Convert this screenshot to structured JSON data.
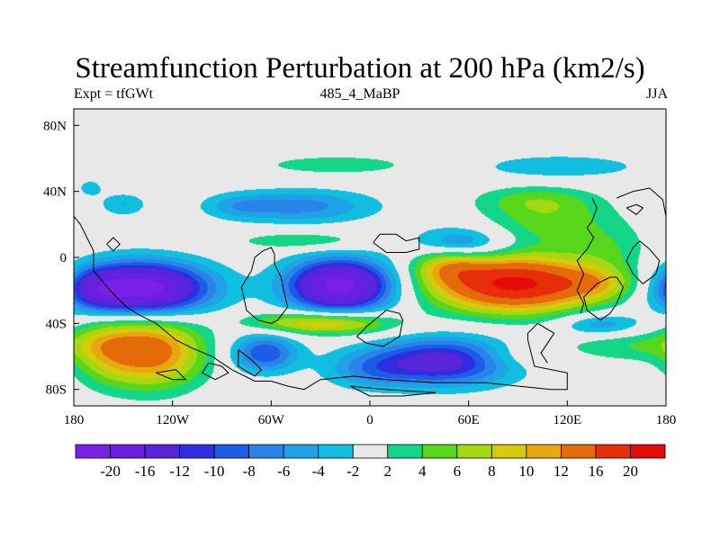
{
  "title": "Streamfunction Perturbation at 200 hPa (km2/s)",
  "left_subtitle": "Expt = tfGWt",
  "center_subtitle": "485_4_MaBP",
  "right_subtitle": "JJA",
  "map": {
    "projection": "cylindrical equidistant",
    "lon_range": [
      -180,
      180
    ],
    "lat_range": [
      -90,
      90
    ],
    "x_ticks": [
      {
        "value": -180,
        "label": "180"
      },
      {
        "value": -120,
        "label": "120W"
      },
      {
        "value": -60,
        "label": "60W"
      },
      {
        "value": 0,
        "label": "0"
      },
      {
        "value": 60,
        "label": "60E"
      },
      {
        "value": 120,
        "label": "120E"
      },
      {
        "value": 180,
        "label": "180"
      }
    ],
    "y_ticks": [
      {
        "value": 80,
        "label": "80N"
      },
      {
        "value": 40,
        "label": "40N"
      },
      {
        "value": 0,
        "label": "0"
      },
      {
        "value": -40,
        "label": "40S"
      },
      {
        "value": -80,
        "label": "80S"
      }
    ],
    "background_color": "#e8e8e8",
    "coastline_color": "#000000"
  },
  "colorbar": {
    "colors": [
      "#7a1fe6",
      "#6a1fe0",
      "#5a25d8",
      "#2e2ee0",
      "#1c5ce8",
      "#2a84e8",
      "#1fa3e6",
      "#10bfdf",
      "#e8e8e8",
      "#14d689",
      "#58d61a",
      "#a4d812",
      "#d4cc0a",
      "#e6a80e",
      "#e56a0a",
      "#e62e0a",
      "#e60b0b"
    ],
    "labels": [
      "-20",
      "-16",
      "-12",
      "-10",
      "-8",
      "-6",
      "-4",
      "-2",
      "2",
      "4",
      "6",
      "8",
      "10",
      "12",
      "16",
      "20"
    ]
  },
  "anomalies": [
    {
      "lon": -139,
      "lat": -19,
      "amp": -23,
      "slon": 28,
      "slat": 11
    },
    {
      "lon": -165,
      "lat": -19,
      "amp": -6,
      "slon": 12,
      "slat": 8
    },
    {
      "lon": -18,
      "lat": -17,
      "amp": -22,
      "slon": 22,
      "slat": 11
    },
    {
      "lon": 88,
      "lat": -16,
      "amp": 21,
      "slon": 35,
      "slat": 12
    },
    {
      "lon": 48,
      "lat": -4,
      "amp": 7,
      "slon": 15,
      "slat": 8
    },
    {
      "lon": 140,
      "lat": -16,
      "amp": 5,
      "slon": 18,
      "slat": 7
    },
    {
      "lon": -133,
      "lat": -57,
      "amp": 14,
      "slon": 22,
      "slat": 15
    },
    {
      "lon": -162,
      "lat": -55,
      "amp": 5,
      "slon": 14,
      "slat": 14
    },
    {
      "lon": -64,
      "lat": -58,
      "amp": -10,
      "slon": 14,
      "slat": 8
    },
    {
      "lon": 45,
      "lat": -63,
      "amp": -14,
      "slon": 30,
      "slat": 10
    },
    {
      "lon": 0,
      "lat": -68,
      "amp": -5,
      "slon": 20,
      "slat": 8
    },
    {
      "lon": -20,
      "lat": -40,
      "amp": 10,
      "slon": 25,
      "slat": 5
    },
    {
      "lon": -55,
      "lat": -39,
      "amp": 4,
      "slon": 20,
      "slat": 4
    },
    {
      "lon": 140,
      "lat": -41,
      "amp": -6,
      "slon": 18,
      "slat": 5
    },
    {
      "lon": 160,
      "lat": -53,
      "amp": 4,
      "slon": 30,
      "slat": 7
    },
    {
      "lon": 85,
      "lat": -60,
      "amp": 3,
      "slon": 20,
      "slat": 6
    },
    {
      "lon": -150,
      "lat": 32,
      "amp": -4,
      "slon": 10,
      "slat": 5
    },
    {
      "lon": -170,
      "lat": 42,
      "amp": -3,
      "slon": 6,
      "slat": 4
    },
    {
      "lon": -43,
      "lat": 31,
      "amp": -7,
      "slon": 32,
      "slat": 7
    },
    {
      "lon": -80,
      "lat": 31,
      "amp": -3,
      "slon": 14,
      "slat": 5
    },
    {
      "lon": -40,
      "lat": 10,
      "amp": 4,
      "slon": 30,
      "slat": 4
    },
    {
      "lon": -20,
      "lat": 56,
      "amp": 3,
      "slon": 40,
      "slat": 5
    },
    {
      "lon": 55,
      "lat": 8,
      "amp": -8,
      "slon": 20,
      "slat": 7
    },
    {
      "lon": 115,
      "lat": 55,
      "amp": -4,
      "slon": 35,
      "slat": 5
    },
    {
      "lon": 110,
      "lat": 22,
      "amp": 5,
      "slon": 28,
      "slat": 10
    },
    {
      "lon": 100,
      "lat": 35,
      "amp": 4,
      "slon": 25,
      "slat": 6
    },
    {
      "lon": 145,
      "lat": 5,
      "amp": 3,
      "slon": 18,
      "slat": 10
    }
  ],
  "coastlines": [
    [
      [
        -180,
        25
      ],
      [
        -176,
        20
      ],
      [
        -172,
        12
      ],
      [
        -168,
        4
      ],
      [
        -168,
        -8
      ],
      [
        -158,
        -20
      ],
      [
        -148,
        -30
      ],
      [
        -140,
        -35
      ],
      [
        -130,
        -40
      ],
      [
        -118,
        -50
      ],
      [
        -108,
        -55
      ],
      [
        -96,
        -60
      ],
      [
        -84,
        -68
      ],
      [
        -70,
        -75
      ],
      [
        -60,
        -75
      ],
      [
        -50,
        -78
      ],
      [
        -40,
        -80
      ],
      [
        -30,
        -74
      ],
      [
        -10,
        -72
      ],
      [
        10,
        -74
      ],
      [
        40,
        -76
      ],
      [
        70,
        -76
      ],
      [
        90,
        -78
      ],
      [
        110,
        -80
      ],
      [
        120,
        -80
      ],
      [
        120,
        -70
      ],
      [
        100,
        -66
      ],
      [
        96,
        -50
      ],
      [
        96,
        -46
      ],
      [
        102,
        -40
      ],
      [
        112,
        -46
      ],
      [
        108,
        -52
      ],
      [
        104,
        -58
      ],
      [
        108,
        -64
      ]
    ],
    [
      [
        -72,
        -8
      ],
      [
        -78,
        -18
      ],
      [
        -75,
        -32
      ],
      [
        -68,
        -38
      ],
      [
        -60,
        -40
      ],
      [
        -56,
        -38
      ],
      [
        -50,
        -30
      ],
      [
        -52,
        -22
      ],
      [
        -54,
        -12
      ],
      [
        -58,
        -4
      ],
      [
        -58,
        2
      ],
      [
        -60,
        6
      ],
      [
        -65,
        4
      ],
      [
        -70,
        0
      ],
      [
        -72,
        -8
      ]
    ],
    [
      [
        -8,
        -48
      ],
      [
        -2,
        -42
      ],
      [
        10,
        -32
      ],
      [
        18,
        -34
      ],
      [
        20,
        -38
      ],
      [
        18,
        -48
      ],
      [
        8,
        -54
      ],
      [
        -2,
        -52
      ],
      [
        -8,
        -48
      ]
    ],
    [
      [
        -80,
        -56
      ],
      [
        -72,
        -62
      ],
      [
        -66,
        -68
      ],
      [
        -70,
        -72
      ],
      [
        -80,
        -66
      ],
      [
        -80,
        -56
      ]
    ],
    [
      [
        -90,
        -66
      ],
      [
        -98,
        -64
      ],
      [
        -102,
        -70
      ],
      [
        -94,
        -74
      ],
      [
        -86,
        -70
      ],
      [
        -90,
        -66
      ]
    ],
    [
      [
        2,
        9
      ],
      [
        6,
        14
      ],
      [
        16,
        14
      ],
      [
        22,
        10
      ],
      [
        30,
        12
      ],
      [
        30,
        5
      ],
      [
        22,
        3
      ],
      [
        10,
        3
      ],
      [
        2,
        9
      ]
    ],
    [
      [
        135,
        36
      ],
      [
        138,
        30
      ],
      [
        135,
        22
      ],
      [
        132,
        18
      ],
      [
        136,
        12
      ],
      [
        132,
        5
      ],
      [
        126,
        -2
      ],
      [
        130,
        -10
      ],
      [
        126,
        -20
      ],
      [
        130,
        -28
      ],
      [
        128,
        -34
      ]
    ],
    [
      [
        150,
        -12
      ],
      [
        154,
        -18
      ],
      [
        150,
        -28
      ],
      [
        146,
        -34
      ],
      [
        140,
        -38
      ],
      [
        132,
        -32
      ],
      [
        130,
        -24
      ],
      [
        138,
        -16
      ],
      [
        146,
        -12
      ],
      [
        150,
        -12
      ]
    ],
    [
      [
        150,
        36
      ],
      [
        160,
        40
      ],
      [
        170,
        42
      ],
      [
        178,
        35
      ],
      [
        180,
        25
      ]
    ],
    [
      [
        164,
        10
      ],
      [
        170,
        5
      ],
      [
        176,
        -2
      ],
      [
        174,
        -10
      ],
      [
        166,
        -16
      ],
      [
        160,
        -10
      ],
      [
        156,
        -2
      ],
      [
        160,
        6
      ],
      [
        164,
        10
      ]
    ],
    [
      [
        156,
        30
      ],
      [
        162,
        32
      ],
      [
        166,
        30
      ],
      [
        162,
        26
      ],
      [
        156,
        30
      ]
    ],
    [
      [
        -160,
        8
      ],
      [
        -156,
        12
      ],
      [
        -152,
        8
      ],
      [
        -156,
        4
      ],
      [
        -160,
        8
      ]
    ],
    [
      [
        -130,
        -70
      ],
      [
        -120,
        -74
      ],
      [
        -112,
        -74
      ],
      [
        -118,
        -68
      ],
      [
        -130,
        -70
      ]
    ],
    [
      [
        -12,
        -78
      ],
      [
        0,
        -84
      ],
      [
        20,
        -84
      ],
      [
        40,
        -82
      ],
      [
        10,
        -80
      ],
      [
        -12,
        -78
      ]
    ]
  ]
}
